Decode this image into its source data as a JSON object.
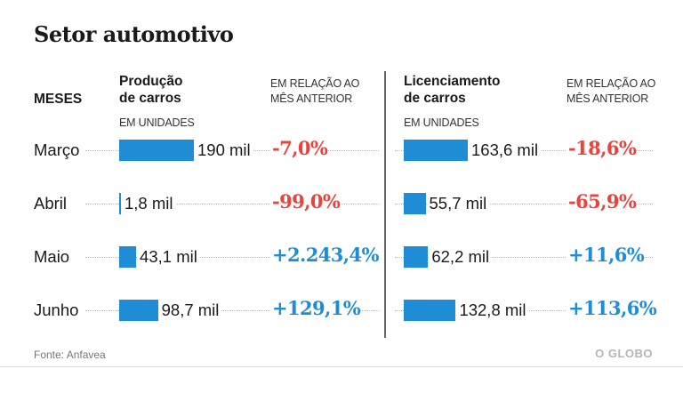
{
  "title": "Setor automotivo",
  "months_header": "MESES",
  "production": {
    "header": [
      "Produção",
      "de carros"
    ],
    "unit": "EM UNIDADES",
    "change_header": [
      "EM RELAÇÃO AO",
      "MÊS ANTERIOR"
    ]
  },
  "licensing": {
    "header": [
      "Licenciamento",
      "de carros"
    ],
    "unit": "EM UNIDADES",
    "change_header": [
      "EM RELAÇÃO AO",
      "MÊS ANTERIOR"
    ]
  },
  "source": "Fonte: Anfavea",
  "logo": "O GLOBO",
  "colors": {
    "bar": "#1f8dd6",
    "negative": "#e8433d",
    "positive": "#1f8dd6"
  },
  "chart_data": {
    "type": "bar",
    "title": "Setor automotivo",
    "categories": [
      "Março",
      "Abril",
      "Maio",
      "Junho"
    ],
    "series": [
      {
        "name": "Produção de carros",
        "unit": "mil unidades",
        "values": [
          190,
          1.8,
          43.1,
          98.7
        ],
        "labels": [
          "190 mil",
          "1,8 mil",
          "43,1 mil",
          "98,7 mil"
        ],
        "change_labels": [
          "-7,0%",
          "-99,0%",
          "+2.243,4%",
          "+129,1%"
        ],
        "change_values": [
          -7.0,
          -99.0,
          2243.4,
          129.1
        ]
      },
      {
        "name": "Licenciamento de carros",
        "unit": "mil unidades",
        "values": [
          163.6,
          55.7,
          62.2,
          132.8
        ],
        "labels": [
          "163,6 mil",
          "55,7 mil",
          "62,2 mil",
          "132,8 mil"
        ],
        "change_labels": [
          "-18,6%",
          "-65,9%",
          "+11,6%",
          "+113,6%"
        ],
        "change_values": [
          -18.6,
          -65.9,
          11.6,
          113.6
        ]
      }
    ],
    "xlabel": "",
    "ylabel": "EM UNIDADES"
  }
}
